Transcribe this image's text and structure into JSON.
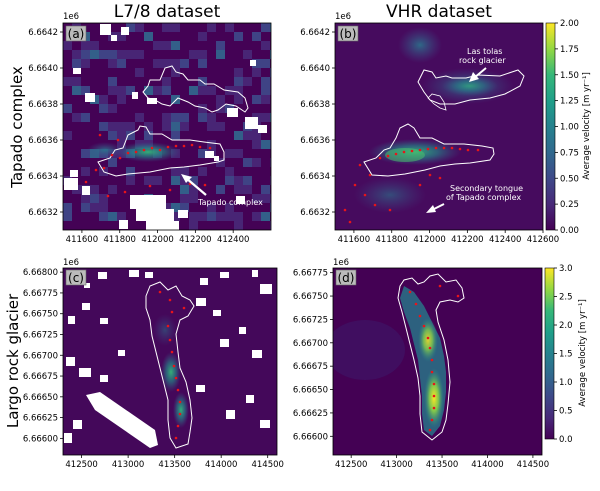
{
  "columns": [
    "L7/8 dataset",
    "VHR dataset"
  ],
  "rows": [
    "Tapado complex",
    "Largo rock glacier"
  ],
  "palette": [
    "#440154",
    "#482878",
    "#3e4989",
    "#31688e",
    "#26828e",
    "#1f9e89",
    "#35b779",
    "#6ece58",
    "#b5de2b",
    "#fde725"
  ],
  "colors": {
    "outline": "#ffffff",
    "points": "#e8141a",
    "nodata": "#ffffff",
    "background": "#460b5e"
  },
  "top_row": {
    "y_exponent": "1e6",
    "y_ticks": [
      "6.66420",
      "6.66400",
      "6.66380",
      "6.66360",
      "6.66340",
      "6.66320"
    ],
    "y_ticks_display": [
      "6.6642",
      "6.6640",
      "6.6638",
      "6.6636",
      "6.6634",
      "6.6632"
    ],
    "x_ticks_left": [
      "411600",
      "411800",
      "412000",
      "412200",
      "412400"
    ],
    "x_ticks_right": [
      "411600",
      "411800",
      "412000",
      "412200",
      "412400",
      "412600"
    ]
  },
  "bottom_row": {
    "y_exponent": "1e6",
    "y_ticks_left": [
      "6.66800",
      "6.66775",
      "6.66750",
      "6.66725",
      "6.66700",
      "6.66675",
      "6.66650",
      "6.66625",
      "6.66600"
    ],
    "y_ticks_right": [
      "6.66775",
      "6.66750",
      "6.66725",
      "6.66700",
      "6.66675",
      "6.66650",
      "6.66625",
      "6.66600"
    ],
    "x_ticks": [
      "412500",
      "413000",
      "413500",
      "414000",
      "414500"
    ]
  },
  "panels": [
    {
      "label": "(a)",
      "annotations": [
        {
          "text": "Tapado complex"
        }
      ]
    },
    {
      "label": "(b)",
      "annotations": [
        {
          "text": "Las tolas"
        },
        {
          "text": "rock glacier"
        },
        {
          "text": "Secondary tongue"
        },
        {
          "text": "of Tapado complex"
        }
      ]
    },
    {
      "label": "(c)",
      "annotations": []
    },
    {
      "label": "(d)",
      "annotations": []
    }
  ],
  "colorbars": [
    {
      "label": "Average velocity [m yr⁻¹]",
      "min": 0,
      "max": 2.0,
      "ticks": [
        "0.00",
        "0.25",
        "0.50",
        "0.75",
        "1.00",
        "1.25",
        "1.50",
        "1.75",
        "2.00"
      ]
    },
    {
      "label": "Average velocity [m yr⁻¹]",
      "min": 0,
      "max": 3.0,
      "ticks": [
        "0.0",
        "0.5",
        "1.0",
        "1.5",
        "2.0",
        "2.5",
        "3.0"
      ]
    }
  ],
  "chart_data": [
    {
      "type": "heatmap",
      "title": "L7/8 dataset",
      "panel": "(a)",
      "xlim": [
        411500,
        412600
      ],
      "ylim": [
        6663100,
        6664250
      ],
      "value_range": [
        0,
        2.0
      ],
      "velocity_hotspots_m_per_yr": [
        {
          "x": 411950,
          "y": 6663450,
          "value": 0.85
        },
        {
          "x": 411800,
          "y": 6663420,
          "value": 0.6
        }
      ]
    },
    {
      "type": "heatmap",
      "title": "VHR dataset",
      "panel": "(b)",
      "xlim": [
        411500,
        412600
      ],
      "ylim": [
        6663100,
        6664250
      ],
      "value_range": [
        0,
        2.0
      ],
      "velocity_hotspots_m_per_yr": [
        {
          "x": 411950,
          "y": 6663500,
          "value": 1.2
        },
        {
          "x": 412100,
          "y": 6663800,
          "value": 0.9
        },
        {
          "x": 411900,
          "y": 6664050,
          "value": 0.6
        }
      ]
    },
    {
      "type": "heatmap",
      "panel": "(c)",
      "xlim": [
        412300,
        414600
      ],
      "ylim": [
        6665800,
        6668050
      ],
      "value_range": [
        0,
        3.0
      ],
      "velocity_hotspots_m_per_yr": [
        {
          "x": 413450,
          "y": 6666780,
          "value": 1.2
        },
        {
          "x": 413500,
          "y": 6666400,
          "value": 1.0
        }
      ]
    },
    {
      "type": "heatmap",
      "panel": "(d)",
      "xlim": [
        412300,
        414600
      ],
      "ylim": [
        6665800,
        6667800
      ],
      "value_range": [
        0,
        3.0
      ],
      "velocity_hotspots_m_per_yr": [
        {
          "x": 413450,
          "y": 6666750,
          "value": 2.0
        },
        {
          "x": 413500,
          "y": 6666400,
          "value": 2.8
        }
      ]
    }
  ]
}
